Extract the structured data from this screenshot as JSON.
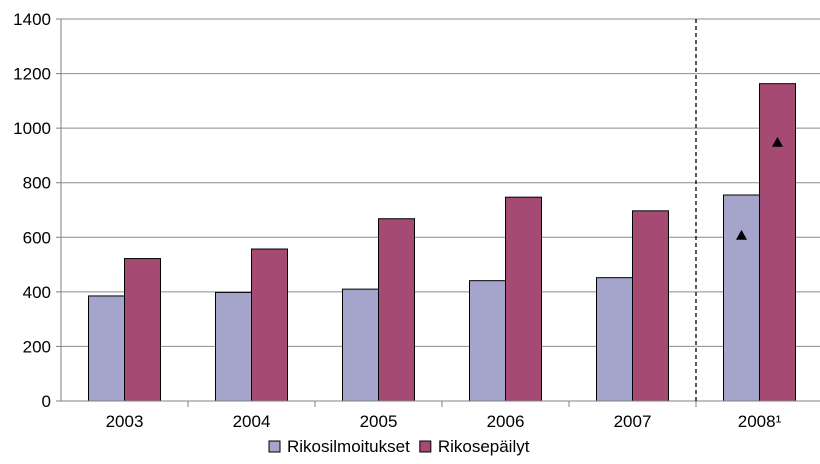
{
  "chart_data": {
    "type": "bar",
    "title": "",
    "xlabel": "",
    "ylabel": "",
    "categories": [
      "2003",
      "2004",
      "2005",
      "2006",
      "2007",
      "2008¹"
    ],
    "series": [
      {
        "name": "Rikosilmoitukset",
        "color": "#a5a5cc",
        "values": [
          385,
          398,
          410,
          441,
          452,
          755
        ]
      },
      {
        "name": "Rikosepäilyt",
        "color": "#a54a73",
        "values": [
          522,
          557,
          668,
          747,
          697,
          1163
        ]
      }
    ],
    "markers": [
      {
        "category": "2008¹",
        "series": "Rikosilmoitukset",
        "y": 607,
        "shape": "triangle"
      },
      {
        "category": "2008¹",
        "series": "Rikosepäilyt",
        "y": 948,
        "shape": "triangle"
      }
    ],
    "ylim": [
      0,
      1400
    ],
    "yticks": [
      0,
      200,
      400,
      600,
      800,
      1000,
      1200,
      1400
    ],
    "grid": true,
    "divider_between": [
      "2007",
      "2008¹"
    ],
    "legend_position": "bottom"
  }
}
